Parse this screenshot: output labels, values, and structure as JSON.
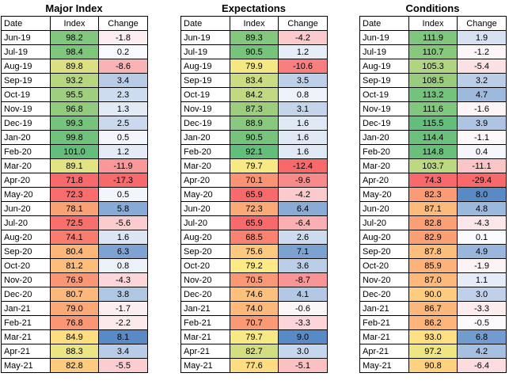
{
  "months": [
    "Jun-19",
    "Jul-19",
    "Aug-19",
    "Sep-19",
    "Oct-19",
    "Nov-19",
    "Dec-19",
    "Jan-20",
    "Feb-20",
    "Mar-20",
    "Apr-20",
    "May-20",
    "Jun-20",
    "Jul-20",
    "Aug-20",
    "Sep-20",
    "Oct-20",
    "Nov-20",
    "Dec-20",
    "Jan-21",
    "Feb-21",
    "Mar-21",
    "Apr-21",
    "May-21"
  ],
  "columns": {
    "date": "Date",
    "index": "Index",
    "change": "Change"
  },
  "tables": [
    {
      "title": "Major Index",
      "index": [
        "98.2",
        "98.4",
        "89.8",
        "93.2",
        "95.5",
        "96.8",
        "99.3",
        "99.8",
        "101.0",
        "89.1",
        "71.8",
        "72.3",
        "78.1",
        "72.5",
        "74.1",
        "80.4",
        "81.2",
        "76.9",
        "80.7",
        "79.0",
        "76.8",
        "84.9",
        "88.3",
        "82.8"
      ],
      "change": [
        "-1.8",
        "0.2",
        "-8.6",
        "3.4",
        "2.3",
        "1.3",
        "2.5",
        "0.5",
        "1.2",
        "-11.9",
        "-17.3",
        "0.5",
        "5.8",
        "-5.6",
        "1.6",
        "6.3",
        "0.8",
        "-4.3",
        "3.8",
        "-1.7",
        "-2.2",
        "8.1",
        "3.4",
        "-5.5"
      ]
    },
    {
      "title": "Expectations",
      "index": [
        "89.3",
        "90.5",
        "79.9",
        "83.4",
        "84.2",
        "87.3",
        "88.9",
        "90.5",
        "92.1",
        "79.7",
        "70.1",
        "65.9",
        "72.3",
        "65.9",
        "68.5",
        "75.6",
        "79.2",
        "70.5",
        "74.6",
        "74.0",
        "70.7",
        "79.7",
        "82.7",
        "77.6"
      ],
      "change": [
        "-4.2",
        "1.2",
        "-10.6",
        "3.5",
        "0.8",
        "3.1",
        "1.6",
        "1.6",
        "1.6",
        "-12.4",
        "-9.6",
        "-4.2",
        "6.4",
        "-6.4",
        "2.6",
        "7.1",
        "3.6",
        "-8.7",
        "4.1",
        "-0.6",
        "-3.3",
        "9.0",
        "3.0",
        "-5.1"
      ]
    },
    {
      "title": "Conditions",
      "index": [
        "111.9",
        "110.7",
        "105.3",
        "108.5",
        "113.2",
        "111.6",
        "115.5",
        "114.4",
        "114.8",
        "103.7",
        "74.3",
        "82.3",
        "87.1",
        "82.8",
        "82.9",
        "87.8",
        "85.9",
        "87.0",
        "90.0",
        "86.7",
        "86.2",
        "93.0",
        "97.2",
        "90.8"
      ],
      "change": [
        "1.9",
        "-1.2",
        "-5.4",
        "3.2",
        "4.7",
        "-1.6",
        "3.9",
        "-1.1",
        "0.4",
        "-11.1",
        "-29.4",
        "8.0",
        "4.8",
        "-4.3",
        "0.1",
        "4.9",
        "-1.9",
        "1.1",
        "3.0",
        "-3.3",
        "-0.5",
        "6.8",
        "4.2",
        "-6.4"
      ]
    }
  ]
}
